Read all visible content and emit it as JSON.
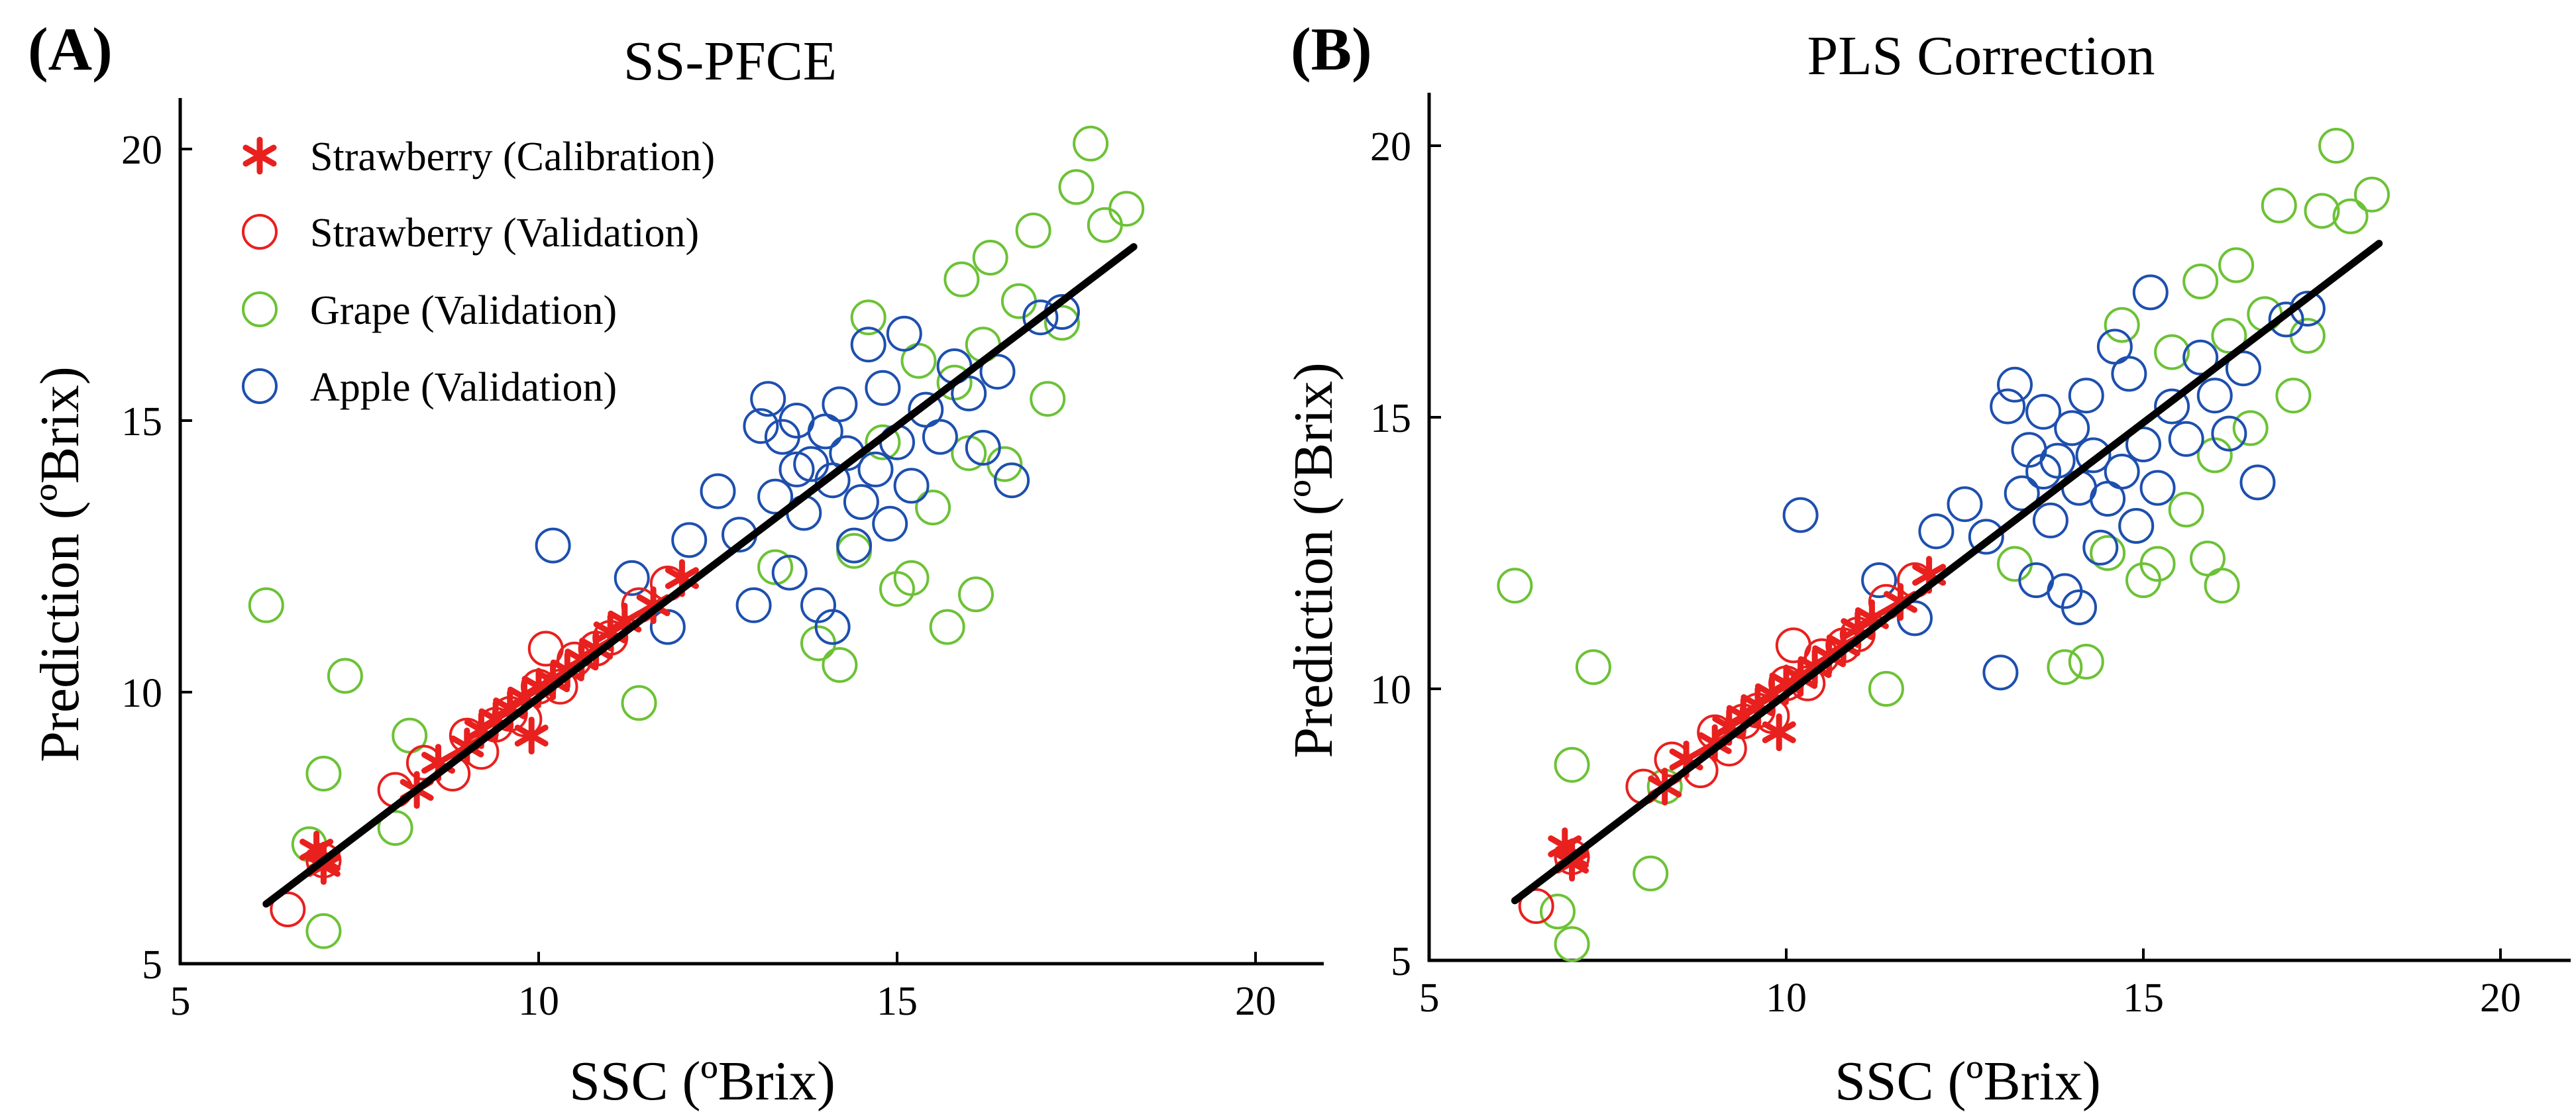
{
  "figure": {
    "panels": [
      {
        "letter": "(A)",
        "title": "SS-PFCE",
        "xlabel": "SSC (ºBrix)",
        "ylabel": "Prediction (ºBrix)"
      },
      {
        "letter": "(B)",
        "title": "PLS Correction",
        "xlabel": "SSC (ºBrix)",
        "ylabel": "Prediction (ºBrix)"
      }
    ],
    "legend": [
      {
        "label": "Strawberry (Calibration)",
        "marker": "asterisk",
        "color": "#e8201e"
      },
      {
        "label": "Strawberry (Validation)",
        "marker": "circle",
        "color": "#e8201e"
      },
      {
        "label": "Grape (Validation)",
        "marker": "circle",
        "color": "#6cc236"
      },
      {
        "label": "Apple (Validation)",
        "marker": "circle",
        "color": "#1d4fae"
      }
    ],
    "colors": {
      "strawberry": "#e8201e",
      "grape": "#6cc236",
      "apple": "#1d4fae",
      "fit_line": "#000000"
    }
  },
  "chart_data": [
    {
      "type": "scatter",
      "title": "SS-PFCE",
      "xlabel": "SSC (ºBrix)",
      "ylabel": "Prediction (ºBrix)",
      "xlim": [
        5,
        21
      ],
      "ylim": [
        5,
        21
      ],
      "xticks": [
        5,
        10,
        15,
        20
      ],
      "yticks": [
        5,
        10,
        15,
        20
      ],
      "fit_line": {
        "x": [
          6.2,
          18.3
        ],
        "y": [
          6.1,
          18.2
        ]
      },
      "series": [
        {
          "name": "Strawberry (Calibration)",
          "marker": "asterisk",
          "x": [
            6.9,
            7.0,
            7.0,
            8.3,
            8.6,
            9.0,
            9.2,
            9.4,
            9.6,
            9.8,
            9.9,
            10.0,
            10.2,
            10.4,
            10.6,
            10.8,
            11.0,
            11.2,
            11.6,
            12.0
          ],
          "y": [
            7.1,
            6.9,
            6.8,
            8.2,
            8.7,
            9.0,
            9.3,
            9.5,
            9.7,
            9.9,
            9.2,
            10.1,
            10.2,
            10.4,
            10.6,
            10.8,
            11.1,
            11.3,
            11.6,
            12.1
          ]
        },
        {
          "name": "Strawberry (Validation)",
          "marker": "circle",
          "x": [
            6.5,
            7.0,
            8.0,
            8.4,
            8.8,
            9.0,
            9.2,
            9.4,
            9.6,
            9.8,
            10.0,
            10.1,
            10.3,
            10.5,
            10.8,
            11.0,
            11.4,
            11.8
          ],
          "y": [
            6.0,
            6.9,
            8.2,
            8.7,
            8.5,
            9.2,
            8.9,
            9.4,
            9.6,
            9.5,
            10.1,
            10.8,
            10.1,
            10.6,
            10.8,
            11.0,
            11.6,
            12.0
          ]
        },
        {
          "name": "Grape (Validation)",
          "marker": "circle",
          "x": [
            6.2,
            6.8,
            7.0,
            7.0,
            7.3,
            8.0,
            8.2,
            11.4,
            13.3,
            13.9,
            14.2,
            14.4,
            14.6,
            14.8,
            15.0,
            15.2,
            15.3,
            15.5,
            15.7,
            15.8,
            15.9,
            16.0,
            16.1,
            16.2,
            16.3,
            16.5,
            16.7,
            16.9,
            17.1,
            17.3,
            17.5,
            17.7,
            17.9,
            18.2
          ],
          "y": [
            11.6,
            7.2,
            8.5,
            5.6,
            10.3,
            7.5,
            9.2,
            9.8,
            12.3,
            10.9,
            10.5,
            12.6,
            16.9,
            14.6,
            11.9,
            12.1,
            16.1,
            13.4,
            11.2,
            15.7,
            17.6,
            14.4,
            11.8,
            16.4,
            18.0,
            14.2,
            17.2,
            18.5,
            15.4,
            16.8,
            19.3,
            20.1,
            18.6,
            18.9
          ]
        },
        {
          "name": "Apple (Validation)",
          "marker": "circle",
          "x": [
            10.2,
            11.3,
            11.8,
            12.1,
            12.5,
            12.8,
            13.0,
            13.1,
            13.2,
            13.3,
            13.4,
            13.5,
            13.6,
            13.7,
            13.8,
            13.9,
            14.0,
            14.1,
            14.2,
            14.3,
            14.4,
            14.5,
            14.6,
            14.7,
            14.8,
            14.9,
            15.0,
            15.1,
            15.2,
            15.4,
            15.6,
            15.8,
            16.0,
            16.2,
            16.4,
            16.6,
            17.0,
            17.3,
            14.1,
            13.6
          ],
          "y": [
            12.7,
            12.1,
            11.2,
            12.8,
            13.7,
            12.9,
            11.6,
            14.9,
            15.4,
            13.6,
            14.7,
            12.2,
            15.0,
            13.3,
            14.2,
            11.6,
            14.8,
            13.9,
            15.3,
            14.4,
            12.7,
            13.5,
            16.4,
            14.1,
            15.6,
            13.1,
            14.6,
            16.6,
            13.8,
            15.2,
            14.7,
            16.0,
            15.5,
            14.5,
            15.9,
            13.9,
            16.9,
            17.0,
            11.2,
            14.1
          ]
        }
      ]
    },
    {
      "type": "scatter",
      "title": "PLS Correction",
      "xlabel": "SSC (ºBrix)",
      "ylabel": "Prediction (ºBrix)",
      "xlim": [
        5,
        21
      ],
      "ylim": [
        5,
        21
      ],
      "xticks": [
        5,
        10,
        15,
        20
      ],
      "yticks": [
        5,
        10,
        15,
        20
      ],
      "fit_line": {
        "x": [
          6.2,
          18.3
        ],
        "y": [
          6.1,
          18.2
        ]
      },
      "series": [
        {
          "name": "Strawberry (Calibration)",
          "marker": "asterisk",
          "x": [
            6.9,
            7.0,
            7.0,
            8.3,
            8.6,
            9.0,
            9.2,
            9.4,
            9.6,
            9.8,
            9.9,
            10.0,
            10.2,
            10.4,
            10.6,
            10.8,
            11.0,
            11.2,
            11.6,
            12.0
          ],
          "y": [
            7.1,
            6.9,
            6.8,
            8.2,
            8.7,
            9.0,
            9.3,
            9.5,
            9.7,
            9.9,
            9.2,
            10.1,
            10.2,
            10.4,
            10.6,
            10.8,
            11.1,
            11.3,
            11.6,
            12.1
          ]
        },
        {
          "name": "Strawberry (Validation)",
          "marker": "circle",
          "x": [
            6.5,
            7.0,
            8.0,
            8.4,
            8.8,
            9.0,
            9.2,
            9.4,
            9.6,
            9.8,
            10.0,
            10.1,
            10.3,
            10.5,
            10.8,
            11.0,
            11.4,
            11.8
          ],
          "y": [
            6.0,
            6.9,
            8.2,
            8.7,
            8.5,
            9.2,
            8.9,
            9.4,
            9.6,
            9.5,
            10.1,
            10.8,
            10.1,
            10.6,
            10.8,
            11.0,
            11.6,
            12.0
          ]
        },
        {
          "name": "Grape (Validation)",
          "marker": "circle",
          "x": [
            6.2,
            6.8,
            7.0,
            7.0,
            7.3,
            8.1,
            8.3,
            11.4,
            13.2,
            13.9,
            14.2,
            14.5,
            14.7,
            14.9,
            15.0,
            15.2,
            15.4,
            15.6,
            15.8,
            15.9,
            16.0,
            16.1,
            16.2,
            16.3,
            16.5,
            16.7,
            16.9,
            17.1,
            17.3,
            17.5,
            17.7,
            17.9,
            18.2
          ],
          "y": [
            11.9,
            5.9,
            8.6,
            5.3,
            10.4,
            6.6,
            8.2,
            10.0,
            12.3,
            10.4,
            10.5,
            12.5,
            16.7,
            13.0,
            12.0,
            12.3,
            16.2,
            13.3,
            17.5,
            12.4,
            14.3,
            11.9,
            16.5,
            17.8,
            14.8,
            16.9,
            18.9,
            15.4,
            16.5,
            18.8,
            20.0,
            18.7,
            19.1
          ]
        },
        {
          "name": "Apple (Validation)",
          "marker": "circle",
          "x": [
            10.2,
            11.3,
            11.8,
            12.1,
            12.5,
            12.8,
            13.0,
            13.1,
            13.2,
            13.3,
            13.4,
            13.5,
            13.6,
            13.7,
            13.8,
            13.9,
            14.0,
            14.1,
            14.2,
            14.3,
            14.4,
            14.5,
            14.6,
            14.7,
            14.8,
            14.9,
            15.0,
            15.1,
            15.2,
            15.4,
            15.6,
            15.8,
            16.0,
            16.2,
            16.4,
            16.6,
            17.0,
            17.3,
            14.1,
            13.6
          ],
          "y": [
            13.2,
            12.0,
            11.3,
            12.9,
            13.4,
            12.8,
            10.3,
            15.2,
            15.6,
            13.6,
            14.4,
            12.0,
            15.1,
            13.1,
            14.2,
            11.8,
            14.8,
            13.7,
            15.4,
            14.3,
            12.6,
            13.5,
            16.3,
            14.0,
            15.8,
            13.0,
            14.5,
            17.3,
            13.7,
            15.2,
            14.6,
            16.1,
            15.4,
            14.7,
            15.9,
            13.8,
            16.8,
            17.0,
            11.5,
            14.0
          ]
        }
      ]
    }
  ]
}
